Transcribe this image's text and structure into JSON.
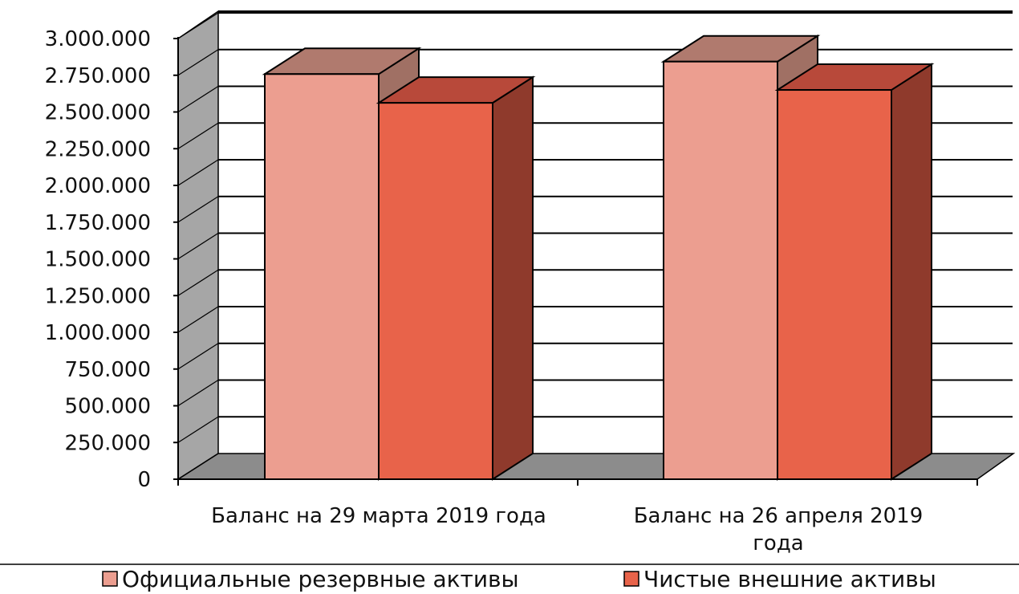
{
  "chart_data": {
    "type": "bar",
    "categories": [
      [
        "Баланс на 29 марта 2019 года"
      ],
      [
        "Баланс на 26 апреля 2019",
        "года"
      ]
    ],
    "series": [
      {
        "name": "Официальные резервные активы",
        "values": [
          2758000,
          2843000
        ]
      },
      {
        "name": "Чистые внешние активы",
        "values": [
          2562000,
          2650000
        ]
      }
    ],
    "ylim": [
      0,
      3000000
    ],
    "yticks": [
      0,
      250000,
      500000,
      750000,
      1000000,
      1250000,
      1500000,
      1750000,
      2000000,
      2250000,
      2500000,
      2750000,
      3000000
    ],
    "ytick_labels": [
      "0",
      "250.000",
      "500.000",
      "750.000",
      "1.000.000",
      "1.250.000",
      "1.500.000",
      "1.750.000",
      "2.000.000",
      "2.250.000",
      "2.500.000",
      "2.750.000",
      "3.000.000"
    ],
    "three_d": true,
    "grid": true,
    "legend_position": "bottom",
    "colors": {
      "series": [
        "#ec9e90",
        "#e8634a"
      ],
      "series_top": [
        "#b07a6e",
        "#b8493a"
      ],
      "series_side": [
        "#a07064",
        "#8f3a2c"
      ],
      "wall": "#a6a6a6",
      "floor": "#8c8c8c"
    }
  }
}
